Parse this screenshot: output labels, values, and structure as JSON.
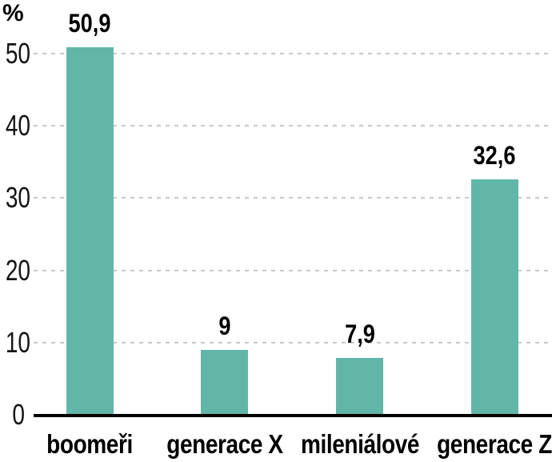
{
  "chart_data": {
    "type": "bar",
    "categories": [
      "boomeři",
      "generace X",
      "mileniálové",
      "generace Z"
    ],
    "values": [
      50.9,
      9,
      7.9,
      32.6
    ],
    "value_labels": [
      "50,9",
      "9",
      "7,9",
      "32,6"
    ],
    "ylabel": "%",
    "xlabel": "",
    "yticks": [
      0,
      10,
      20,
      30,
      40,
      50
    ],
    "ytick_labels": [
      "0",
      "10",
      "20",
      "30",
      "40",
      "50"
    ],
    "ylim": [
      0,
      55
    ],
    "grid": "dashed-horizontal",
    "legend": "none",
    "bar_color": "#62b6a8",
    "grid_color": "#c9c9c9",
    "axis_color": "#000000",
    "text_color": "#000000"
  }
}
